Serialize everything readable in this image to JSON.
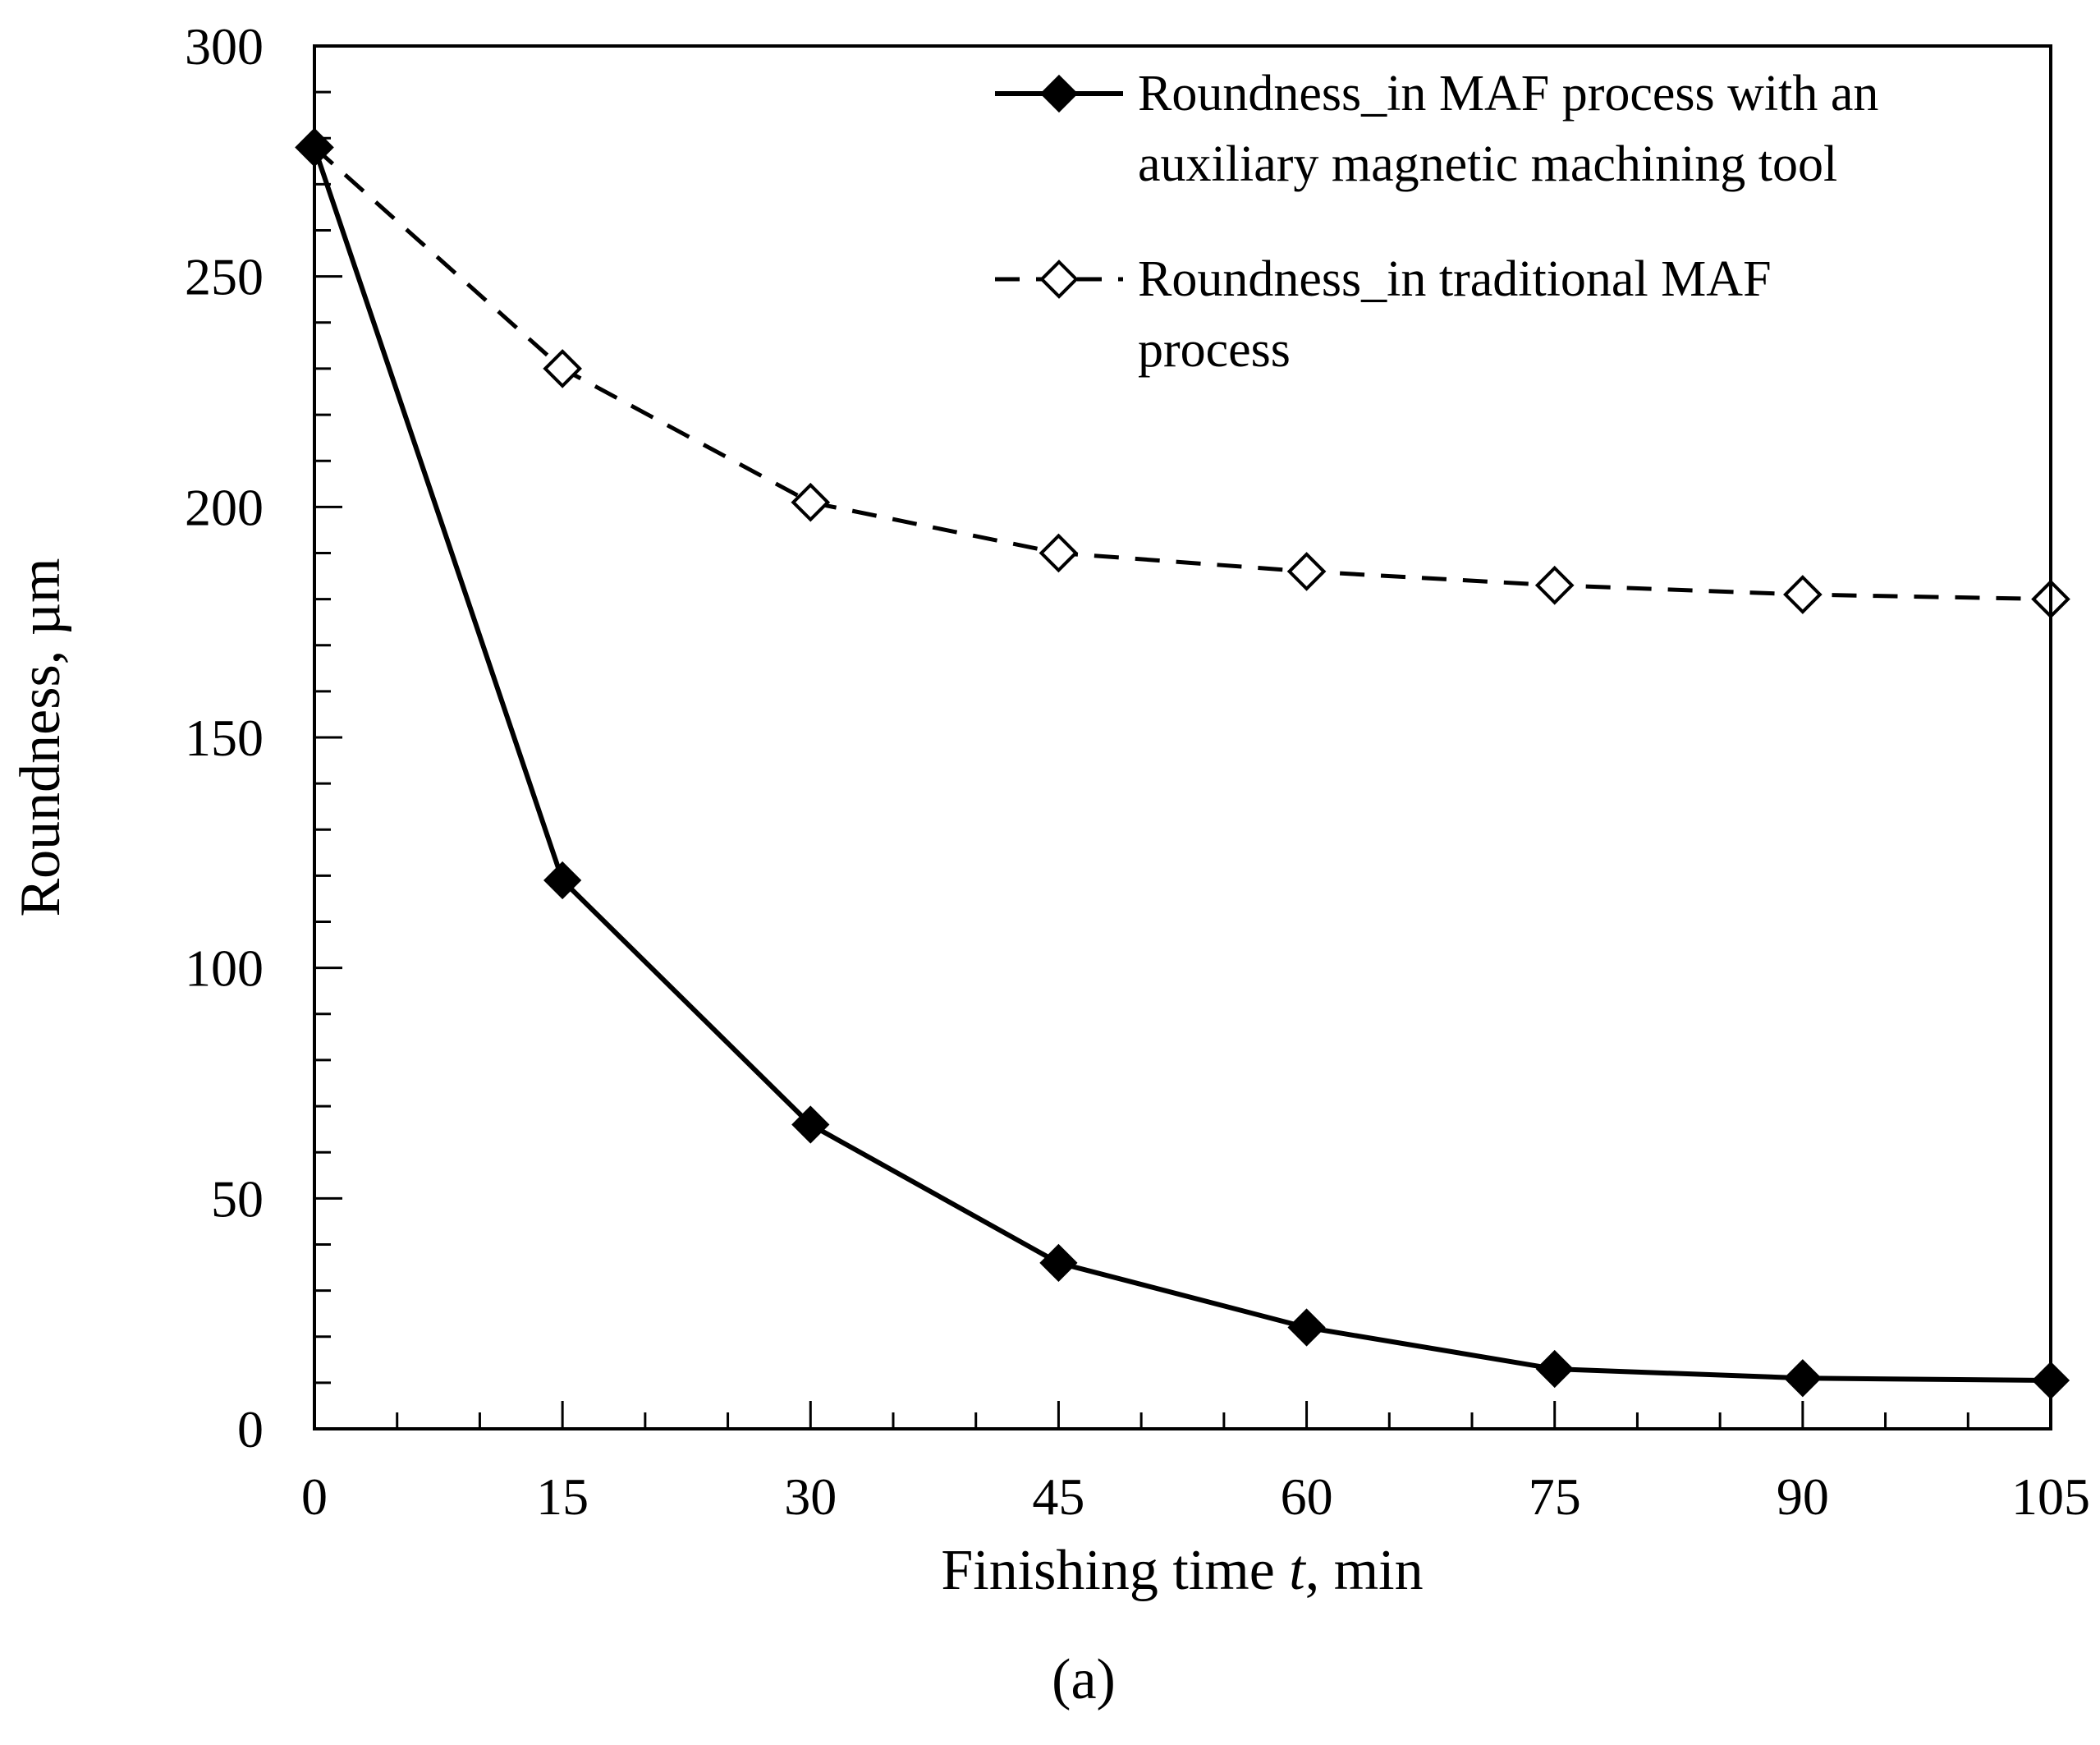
{
  "chart_data": {
    "type": "line",
    "title": "",
    "xlabel": "Finishing time t, min",
    "xlabel_parts": {
      "before": "Finishing time ",
      "italic": "t",
      "after": ", min"
    },
    "ylabel": "Roundness,  µm",
    "x": [
      0,
      15,
      30,
      45,
      60,
      75,
      90,
      105
    ],
    "xlim": [
      0,
      105
    ],
    "ylim": [
      0,
      300
    ],
    "xticks": [
      "0",
      "15",
      "30",
      "45",
      "60",
      "75",
      "90",
      "105"
    ],
    "yticks": [
      "0",
      "50",
      "100",
      "150",
      "200",
      "250",
      "300"
    ],
    "grid": false,
    "legend_position": "top-right",
    "series": [
      {
        "name": "Roundness_in MAF process with an auxiliary magnetic machining tool",
        "legend_lines": [
          "Roundness_in MAF process with an",
          "auxiliary magnetic machining tool"
        ],
        "style": "solid",
        "marker": "filled-diamond",
        "values": [
          278,
          119,
          66,
          36,
          22,
          13,
          11,
          10.5
        ]
      },
      {
        "name": "Roundness_in traditional MAF process",
        "legend_lines": [
          "Roundness_in traditional MAF",
          "process"
        ],
        "style": "dashed",
        "marker": "open-diamond",
        "values": [
          278,
          230,
          201,
          190,
          186,
          183,
          181,
          180
        ]
      }
    ],
    "caption": "(a)"
  }
}
